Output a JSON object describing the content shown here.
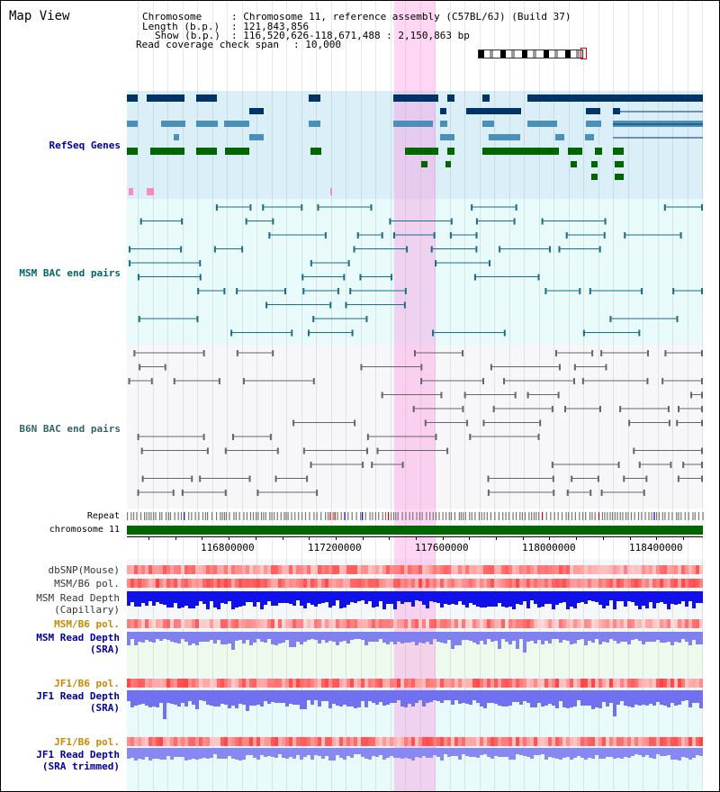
{
  "header": {
    "title": "Map View",
    "chromosome_label": "Chromosome",
    "chromosome_value": ": Chromosome 11, reference assembly (C57BL/6J) (Build 37)",
    "length_label": "Length (b.p.)",
    "length_value": ": 121,843,856",
    "show_label": "Show (b.p.)",
    "show_value": ": 116,520,626-118,671,488 : 2,150,863 bp",
    "span_label": "Read coverage check span",
    "span_value": ": 10,000"
  },
  "tracks": {
    "refseq": "RefSeq Genes",
    "msm_bac": "MSM BAC end pairs",
    "b6n_bac": "B6N BAC end pairs",
    "repeat": "Repeat",
    "chromosome": "chromosome 11"
  },
  "axis": {
    "ticks": [
      "116800000",
      "117200000",
      "117600000",
      "118000000",
      "118400000"
    ]
  },
  "signal_tracks": {
    "dbsnp": "dbSNP(Mouse)",
    "msm_b6_pol_1": "MSM/B6 pol.",
    "msm_read_depth_cap_1": "MSM Read Depth",
    "msm_read_depth_cap_2": "(Capillary)",
    "msm_b6_pol_2": "MSM/B6 pol.",
    "msm_read_depth_sra_1": "MSM Read Depth",
    "msm_read_depth_sra_2": "(SRA)",
    "jf1_b6_pol_1": "JF1/B6 pol.",
    "jf1_read_depth_sra_1": "JF1 Read Depth",
    "jf1_read_depth_sra_2": "(SRA)",
    "jf1_b6_pol_2": "JF1/B6 pol.",
    "jf1_read_depth_trim_1": "JF1 Read Depth",
    "jf1_read_depth_trim_2": "(SRA trimmed)"
  },
  "colors": {
    "refseq_dark": "#003366",
    "refseq_mid": "#4a90b8",
    "refseq_green": "#006600",
    "msm_label": "#006666",
    "b6n_label": "#336666",
    "orange_label": "#cc8800",
    "blue_label": "#000099",
    "highlight": "#ff78dc"
  }
}
